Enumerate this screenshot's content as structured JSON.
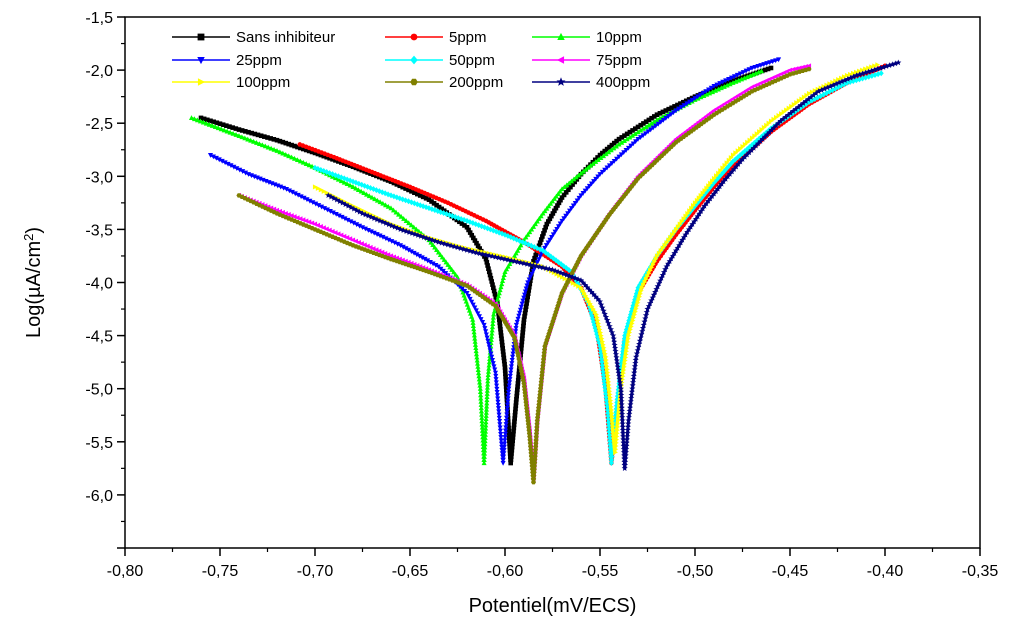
{
  "chart_data": {
    "type": "line",
    "title": "",
    "xlabel": "Potentiel(mV/ECS)",
    "ylabel": "Log(µA/cm²)",
    "ylabel_parts": {
      "prefix": "Log(µA/cm",
      "sup": "2",
      "suffix": ")"
    },
    "xlim": [
      -0.8,
      -0.35
    ],
    "ylim": [
      -6.5,
      -1.5
    ],
    "x_ticks": [
      -0.8,
      -0.75,
      -0.7,
      -0.65,
      -0.6,
      -0.55,
      -0.5,
      -0.45,
      -0.4,
      -0.35
    ],
    "x_tick_labels": [
      "-0,80",
      "-0,75",
      "-0,70",
      "-0,65",
      "-0,60",
      "-0,55",
      "-0,50",
      "-0,45",
      "-0,40",
      "-0,35"
    ],
    "y_ticks": [
      -6.5,
      -6.0,
      -5.5,
      -5.0,
      -4.5,
      -4.0,
      -3.5,
      -3.0,
      -2.5,
      -2.0,
      -1.5
    ],
    "y_tick_labels": [
      "",
      "-6,0",
      "-5,5",
      "-5,0",
      "-4,5",
      "-4,0",
      "-3,5",
      "-3,0",
      "-2,5",
      "-2,0",
      "-1,5"
    ],
    "grid": false,
    "legend_position": "top-left",
    "series": [
      {
        "name": "Sans inhibiteur",
        "color": "#000000",
        "marker": "square",
        "x": [
          -0.76,
          -0.74,
          -0.72,
          -0.7,
          -0.68,
          -0.66,
          -0.64,
          -0.62,
          -0.61,
          -0.604,
          -0.6,
          -0.597,
          -0.594,
          -0.59,
          -0.585,
          -0.578,
          -0.57,
          -0.56,
          -0.55,
          -0.54,
          -0.52,
          -0.5,
          -0.48,
          -0.46
        ],
        "y": [
          -2.45,
          -2.56,
          -2.66,
          -2.78,
          -2.91,
          -3.05,
          -3.22,
          -3.48,
          -3.78,
          -4.2,
          -4.8,
          -5.7,
          -5.1,
          -4.35,
          -3.8,
          -3.45,
          -3.2,
          -2.98,
          -2.8,
          -2.65,
          -2.42,
          -2.25,
          -2.1,
          -1.98
        ]
      },
      {
        "name": "5ppm",
        "color": "#ff0000",
        "marker": "circle",
        "x": [
          -0.708,
          -0.69,
          -0.67,
          -0.65,
          -0.63,
          -0.61,
          -0.59,
          -0.57,
          -0.56,
          -0.552,
          -0.547,
          -0.544,
          -0.541,
          -0.537,
          -0.53,
          -0.52,
          -0.51,
          -0.5,
          -0.49,
          -0.48,
          -0.46,
          -0.44,
          -0.42,
          -0.4
        ],
        "y": [
          -2.7,
          -2.82,
          -2.96,
          -3.1,
          -3.25,
          -3.42,
          -3.62,
          -3.85,
          -4.05,
          -4.4,
          -5.0,
          -5.7,
          -5.2,
          -4.55,
          -4.1,
          -3.8,
          -3.55,
          -3.32,
          -3.1,
          -2.9,
          -2.58,
          -2.32,
          -2.12,
          -1.96
        ]
      },
      {
        "name": "10ppm",
        "color": "#00ff00",
        "marker": "triangle-up",
        "x": [
          -0.765,
          -0.74,
          -0.72,
          -0.7,
          -0.68,
          -0.66,
          -0.64,
          -0.625,
          -0.617,
          -0.613,
          -0.611,
          -0.609,
          -0.606,
          -0.6,
          -0.59,
          -0.58,
          -0.57,
          -0.555,
          -0.54,
          -0.52,
          -0.5,
          -0.48,
          -0.465
        ],
        "y": [
          -2.45,
          -2.62,
          -2.76,
          -2.92,
          -3.1,
          -3.3,
          -3.6,
          -3.95,
          -4.35,
          -5.0,
          -5.7,
          -4.9,
          -4.3,
          -3.9,
          -3.6,
          -3.35,
          -3.12,
          -2.9,
          -2.7,
          -2.47,
          -2.28,
          -2.12,
          -2.01
        ]
      },
      {
        "name": "25ppm",
        "color": "#0000ff",
        "marker": "triangle-down",
        "x": [
          -0.755,
          -0.735,
          -0.715,
          -0.695,
          -0.675,
          -0.655,
          -0.635,
          -0.62,
          -0.611,
          -0.605,
          -0.601,
          -0.598,
          -0.594,
          -0.588,
          -0.58,
          -0.57,
          -0.56,
          -0.55,
          -0.53,
          -0.51,
          -0.49,
          -0.47,
          -0.456
        ],
        "y": [
          -2.8,
          -2.98,
          -3.12,
          -3.3,
          -3.48,
          -3.65,
          -3.85,
          -4.1,
          -4.4,
          -4.85,
          -5.7,
          -5.0,
          -4.4,
          -4.0,
          -3.7,
          -3.42,
          -3.18,
          -2.98,
          -2.65,
          -2.38,
          -2.15,
          -1.98,
          -1.9
        ]
      },
      {
        "name": "50ppm",
        "color": "#00ffff",
        "marker": "diamond",
        "x": [
          -0.7,
          -0.68,
          -0.66,
          -0.64,
          -0.62,
          -0.6,
          -0.58,
          -0.565,
          -0.556,
          -0.55,
          -0.546,
          -0.544,
          -0.541,
          -0.537,
          -0.53,
          -0.52,
          -0.51,
          -0.5,
          -0.49,
          -0.48,
          -0.46,
          -0.44,
          -0.42,
          -0.402
        ],
        "y": [
          -2.92,
          -3.05,
          -3.18,
          -3.3,
          -3.42,
          -3.55,
          -3.7,
          -3.9,
          -4.2,
          -4.6,
          -5.2,
          -5.7,
          -5.1,
          -4.5,
          -4.05,
          -3.75,
          -3.5,
          -3.28,
          -3.06,
          -2.86,
          -2.55,
          -2.3,
          -2.12,
          -2.03
        ]
      },
      {
        "name": "75ppm",
        "color": "#ff00ff",
        "marker": "triangle-left",
        "x": [
          -0.74,
          -0.72,
          -0.7,
          -0.68,
          -0.66,
          -0.64,
          -0.62,
          -0.605,
          -0.595,
          -0.59,
          -0.587,
          -0.585,
          -0.583,
          -0.579,
          -0.57,
          -0.56,
          -0.545,
          -0.53,
          -0.51,
          -0.49,
          -0.47,
          -0.45,
          -0.44
        ],
        "y": [
          -3.18,
          -3.32,
          -3.45,
          -3.6,
          -3.75,
          -3.88,
          -4.02,
          -4.2,
          -4.5,
          -4.9,
          -5.4,
          -5.85,
          -5.3,
          -4.6,
          -4.1,
          -3.75,
          -3.35,
          -3.0,
          -2.65,
          -2.38,
          -2.16,
          -2.0,
          -1.96
        ]
      },
      {
        "name": "100ppm",
        "color": "#ffff00",
        "marker": "triangle-right",
        "x": [
          -0.7,
          -0.68,
          -0.66,
          -0.64,
          -0.62,
          -0.6,
          -0.58,
          -0.56,
          -0.552,
          -0.547,
          -0.544,
          -0.542,
          -0.539,
          -0.535,
          -0.528,
          -0.52,
          -0.51,
          -0.5,
          -0.49,
          -0.48,
          -0.46,
          -0.44,
          -0.42,
          -0.404
        ],
        "y": [
          -3.1,
          -3.28,
          -3.45,
          -3.58,
          -3.68,
          -3.76,
          -3.85,
          -4.05,
          -4.3,
          -4.7,
          -5.2,
          -5.6,
          -5.0,
          -4.5,
          -4.05,
          -3.75,
          -3.5,
          -3.25,
          -3.02,
          -2.8,
          -2.48,
          -2.22,
          -2.05,
          -1.95
        ]
      },
      {
        "name": "200ppm",
        "color": "#808000",
        "marker": "hexagon",
        "x": [
          -0.74,
          -0.72,
          -0.7,
          -0.68,
          -0.66,
          -0.64,
          -0.62,
          -0.605,
          -0.595,
          -0.59,
          -0.587,
          -0.585,
          -0.583,
          -0.579,
          -0.57,
          -0.56,
          -0.545,
          -0.53,
          -0.51,
          -0.49,
          -0.47,
          -0.45,
          -0.44
        ],
        "y": [
          -3.18,
          -3.35,
          -3.5,
          -3.65,
          -3.78,
          -3.9,
          -4.03,
          -4.22,
          -4.52,
          -4.95,
          -5.45,
          -5.88,
          -5.3,
          -4.6,
          -4.1,
          -3.75,
          -3.36,
          -3.02,
          -2.68,
          -2.42,
          -2.2,
          -2.04,
          -1.99
        ]
      },
      {
        "name": "400ppm",
        "color": "#000080",
        "marker": "star",
        "x": [
          -0.693,
          -0.675,
          -0.655,
          -0.635,
          -0.615,
          -0.595,
          -0.575,
          -0.56,
          -0.55,
          -0.543,
          -0.539,
          -0.537,
          -0.535,
          -0.531,
          -0.525,
          -0.515,
          -0.505,
          -0.495,
          -0.485,
          -0.475,
          -0.455,
          -0.435,
          -0.415,
          -0.393
        ],
        "y": [
          -3.18,
          -3.35,
          -3.5,
          -3.62,
          -3.72,
          -3.8,
          -3.88,
          -3.98,
          -4.18,
          -4.5,
          -5.0,
          -5.75,
          -5.3,
          -4.7,
          -4.25,
          -3.85,
          -3.55,
          -3.28,
          -3.05,
          -2.84,
          -2.48,
          -2.2,
          -2.05,
          -1.93
        ]
      }
    ]
  }
}
